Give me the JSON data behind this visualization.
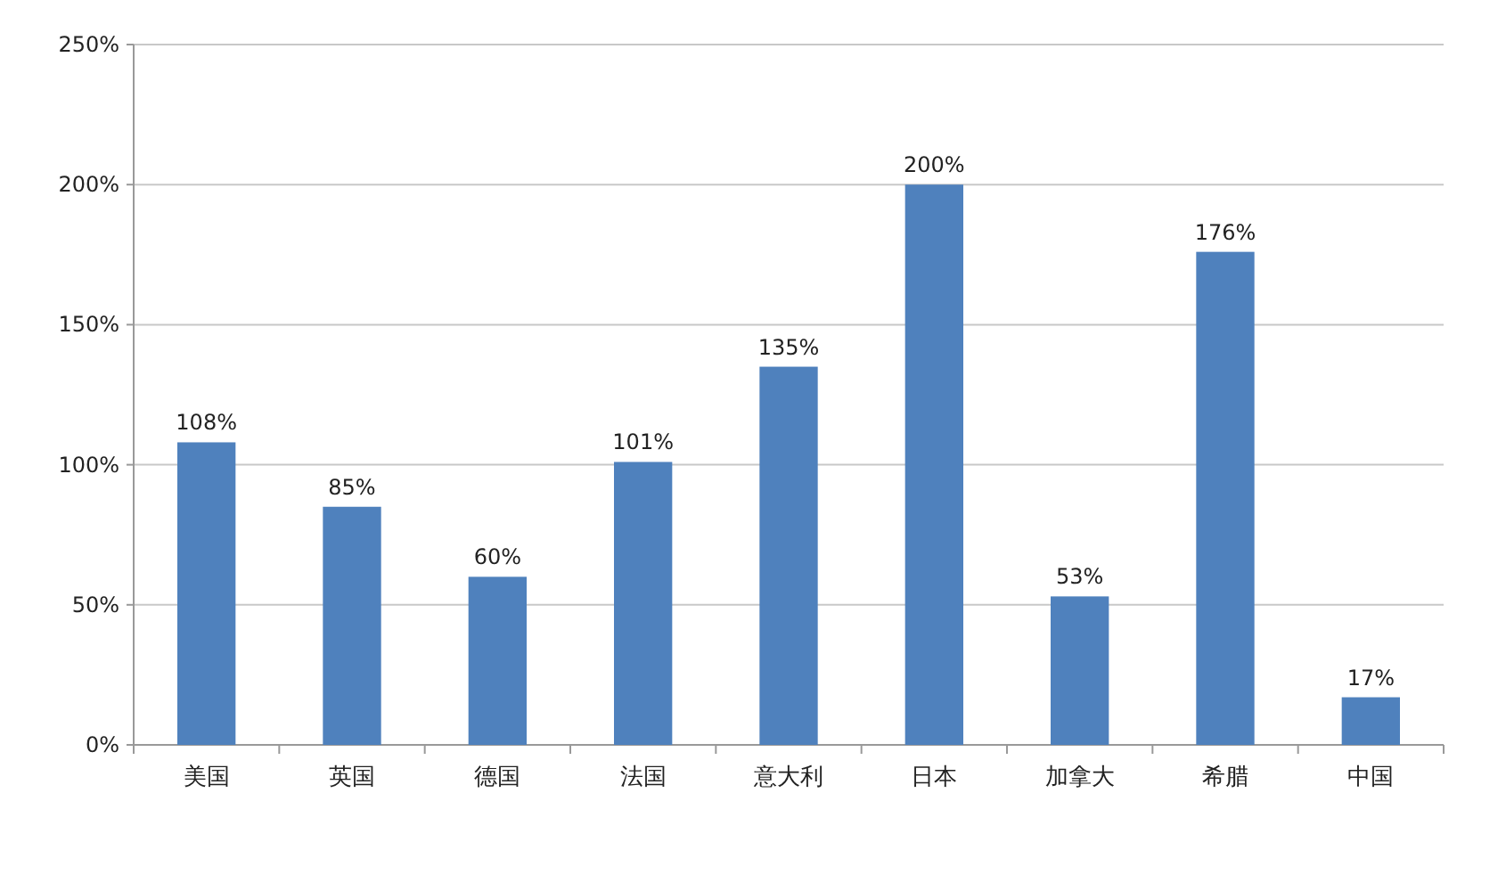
{
  "chart_data": {
    "type": "bar",
    "categories": [
      "美国",
      "英国",
      "德国",
      "法国",
      "意大利",
      "日本",
      "加拿大",
      "希腊",
      "中国"
    ],
    "values": [
      108,
      85,
      60,
      101,
      135,
      200,
      53,
      176,
      17
    ],
    "value_labels": [
      "108%",
      "85%",
      "60%",
      "101%",
      "135%",
      "200%",
      "53%",
      "176%",
      "17%"
    ],
    "color": "#4f81bd",
    "ylim": [
      0,
      250
    ],
    "yticks": [
      {
        "value": 0,
        "label": "0%"
      },
      {
        "value": 50,
        "label": "50%"
      },
      {
        "value": 100,
        "label": "100%"
      },
      {
        "value": 150,
        "label": "150%"
      },
      {
        "value": 200,
        "label": "200%"
      },
      {
        "value": 250,
        "label": "250%"
      }
    ],
    "grid": "y"
  }
}
